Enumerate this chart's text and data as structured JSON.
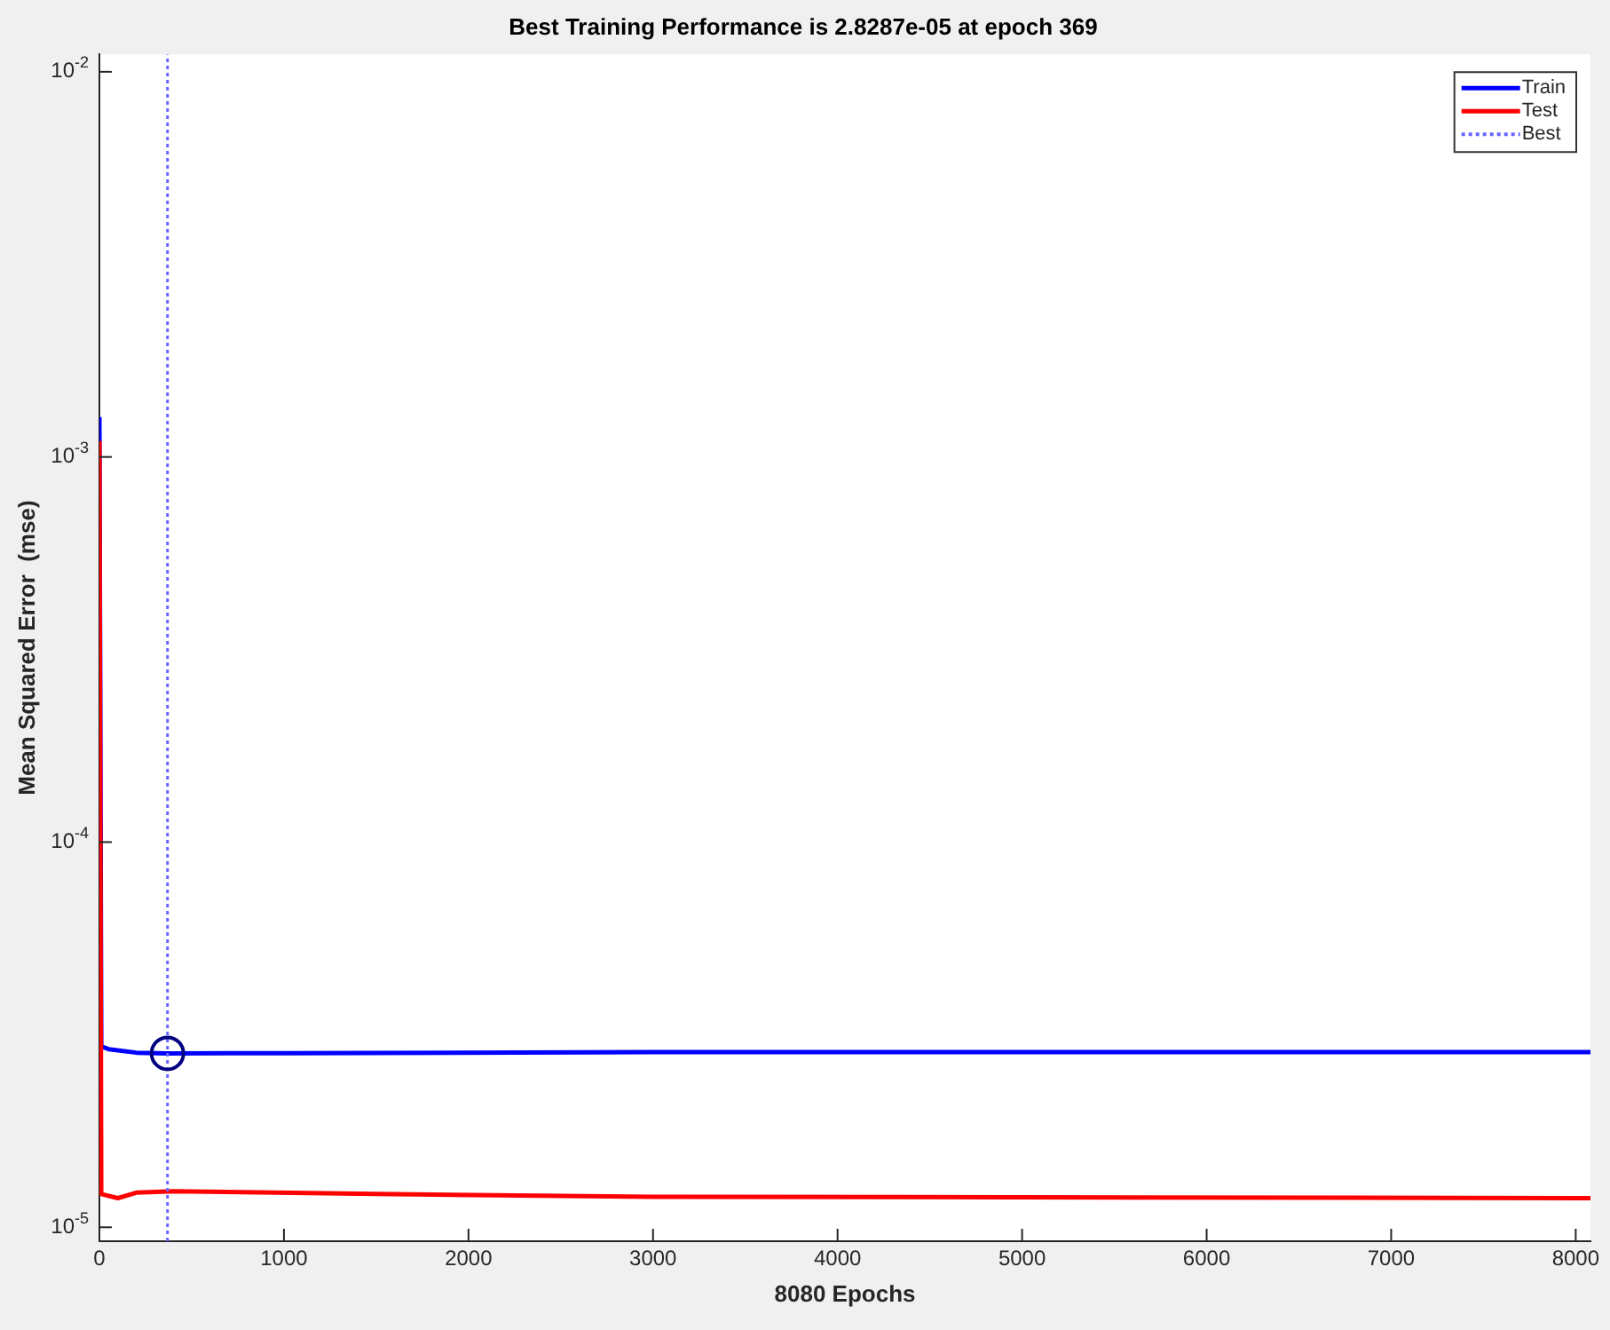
{
  "chart_data": {
    "type": "line",
    "title": "Best Training Performance is 2.8287e-05 at epoch 369",
    "xlabel": "8080 Epochs",
    "ylabel": "Mean Squared Error  (mse)",
    "log": "y",
    "grid": false,
    "legend": "top right",
    "marker": "none",
    "line_style": "solid",
    "xlim": [
      0,
      8080
    ],
    "xticks": [
      0,
      1000,
      2000,
      3000,
      4000,
      5000,
      6000,
      7000,
      8000
    ],
    "ylim": [
      9.2e-06,
      0.0111
    ],
    "yticks": [
      {
        "value": 1e-05,
        "label": "10$^{-5}$"
      },
      {
        "value": 0.0001,
        "label": "10$^{-4}$"
      },
      {
        "value": 0.001,
        "label": "10$^{-3}$"
      },
      {
        "value": 0.01,
        "label": "10$^{-2}$"
      }
    ],
    "series": [
      {
        "name": "Train",
        "color": "#0000ff",
        "x": [
          0,
          10,
          50,
          200,
          369,
          1000,
          3000,
          8080
        ],
        "values": [
          0.00127,
          2.95e-05,
          2.9e-05,
          2.84e-05,
          2.8287e-05,
          2.83e-05,
          2.85e-05,
          2.85e-05
        ]
      },
      {
        "name": "Test",
        "color": "#ff0000",
        "x": [
          0,
          10,
          100,
          200,
          400,
          1500,
          3000,
          8080
        ],
        "values": [
          0.0011,
          1.22e-05,
          1.19e-05,
          1.23e-05,
          1.24e-05,
          1.22e-05,
          1.2e-05,
          1.19e-05
        ]
      },
      {
        "name": "Best",
        "line_style": "dotted",
        "color": "#6666ff",
        "x": [
          369,
          369
        ],
        "values": [
          9.2e-06,
          0.0111
        ]
      },
      {
        "type": "scatter",
        "marker": "circle",
        "color": "#000080",
        "x": [
          369
        ],
        "values": [
          2.8287e-05
        ]
      }
    ]
  }
}
